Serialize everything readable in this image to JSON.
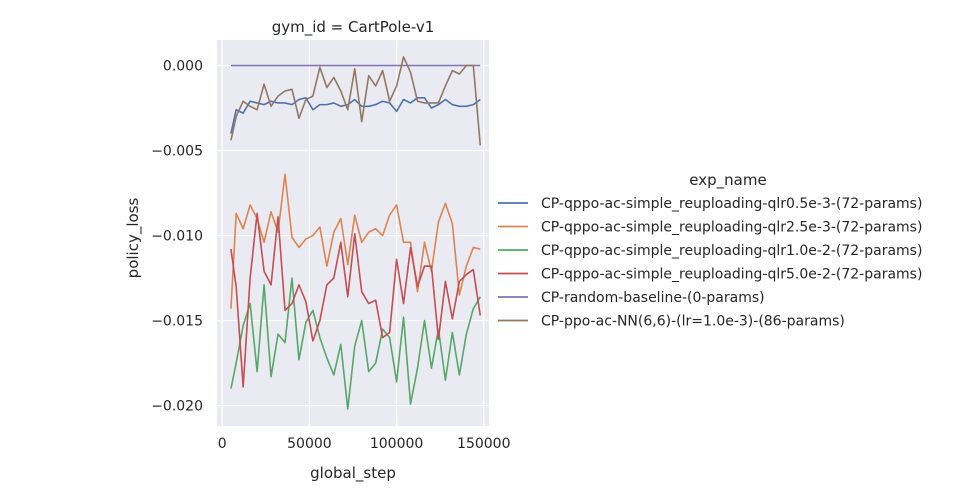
{
  "chart_data": {
    "type": "line",
    "title": "gym_id = CartPole-v1",
    "xlabel": "global_step",
    "ylabel": "policy_loss",
    "xlim": [
      -3000,
      153000
    ],
    "ylim": [
      -0.0212,
      0.0015
    ],
    "xticks": [
      0,
      50000,
      100000,
      150000
    ],
    "xtick_labels": [
      "0",
      "50000",
      "100000",
      "150000"
    ],
    "yticks": [
      0.0,
      -0.005,
      -0.01,
      -0.015,
      -0.02
    ],
    "ytick_labels": [
      "0.000",
      "−0.005",
      "−0.010",
      "−0.015",
      "−0.020"
    ],
    "grid": true,
    "legend_title": "exp_name",
    "legend_position": "right",
    "series": [
      {
        "name": "CP-qppo-ac-simple_reuploading-qlr0.5e-3-(72-params)",
        "color": "#4c72b0",
        "x": [
          5000,
          8000,
          12000,
          16000,
          20000,
          24000,
          28000,
          32000,
          36000,
          40000,
          44000,
          48000,
          52000,
          56000,
          60000,
          64000,
          68000,
          72000,
          76000,
          80000,
          84000,
          88000,
          92000,
          96000,
          100000,
          104000,
          108000,
          112000,
          116000,
          120000,
          124000,
          128000,
          132000,
          136000,
          140000,
          144000,
          148000
        ],
        "y": [
          -0.004,
          -0.0026,
          -0.0028,
          -0.0021,
          -0.0022,
          -0.0023,
          -0.0021,
          -0.0022,
          -0.0022,
          -0.0023,
          -0.002,
          -0.0019,
          -0.0026,
          -0.0023,
          -0.0023,
          -0.0022,
          -0.0024,
          -0.0023,
          -0.002,
          -0.0024,
          -0.0024,
          -0.0023,
          -0.0021,
          -0.0022,
          -0.0027,
          -0.002,
          -0.0022,
          -0.0019,
          -0.0019,
          -0.0025,
          -0.0023,
          -0.002,
          -0.0023,
          -0.0024,
          -0.0024,
          -0.0023,
          -0.002
        ]
      },
      {
        "name": "CP-qppo-ac-simple_reuploading-qlr2.5e-3-(72-params)",
        "color": "#dd8452",
        "x": [
          5000,
          8000,
          12000,
          16000,
          20000,
          24000,
          28000,
          32000,
          36000,
          40000,
          44000,
          48000,
          52000,
          56000,
          60000,
          64000,
          68000,
          72000,
          76000,
          80000,
          84000,
          88000,
          92000,
          96000,
          100000,
          104000,
          108000,
          112000,
          116000,
          120000,
          124000,
          128000,
          132000,
          136000,
          140000,
          144000,
          148000
        ],
        "y": [
          -0.0143,
          -0.0087,
          -0.0096,
          -0.0082,
          -0.009,
          -0.0104,
          -0.0086,
          -0.0098,
          -0.0064,
          -0.0101,
          -0.0107,
          -0.0102,
          -0.01,
          -0.0095,
          -0.0118,
          -0.0098,
          -0.009,
          -0.0117,
          -0.0088,
          -0.0104,
          -0.0098,
          -0.0096,
          -0.01,
          -0.0088,
          -0.0082,
          -0.0104,
          -0.0104,
          -0.0133,
          -0.0104,
          -0.0121,
          -0.0092,
          -0.0081,
          -0.0093,
          -0.0135,
          -0.0118,
          -0.0107,
          -0.0108
        ]
      },
      {
        "name": "CP-qppo-ac-simple_reuploading-qlr1.0e-2-(72-params)",
        "color": "#55a868",
        "x": [
          5000,
          8000,
          12000,
          16000,
          20000,
          24000,
          28000,
          32000,
          36000,
          40000,
          44000,
          48000,
          52000,
          56000,
          60000,
          64000,
          68000,
          72000,
          76000,
          80000,
          84000,
          88000,
          92000,
          96000,
          100000,
          104000,
          108000,
          112000,
          116000,
          120000,
          124000,
          128000,
          132000,
          136000,
          140000,
          144000,
          148000
        ],
        "y": [
          -0.019,
          -0.0175,
          -0.0153,
          -0.014,
          -0.018,
          -0.0129,
          -0.0183,
          -0.0158,
          -0.0163,
          -0.0125,
          -0.0173,
          -0.0151,
          -0.0144,
          -0.016,
          -0.0172,
          -0.0182,
          -0.0164,
          -0.0202,
          -0.0165,
          -0.015,
          -0.018,
          -0.0175,
          -0.0155,
          -0.016,
          -0.0186,
          -0.0148,
          -0.0199,
          -0.0178,
          -0.015,
          -0.0178,
          -0.0155,
          -0.0185,
          -0.0157,
          -0.0182,
          -0.0158,
          -0.0143,
          -0.0136
        ]
      },
      {
        "name": "CP-qppo-ac-simple_reuploading-qlr5.0e-2-(72-params)",
        "color": "#c44e52",
        "x": [
          5000,
          8000,
          12000,
          16000,
          20000,
          24000,
          28000,
          32000,
          36000,
          40000,
          44000,
          48000,
          52000,
          56000,
          60000,
          64000,
          68000,
          72000,
          76000,
          80000,
          84000,
          88000,
          92000,
          96000,
          100000,
          104000,
          108000,
          112000,
          116000,
          120000,
          124000,
          128000,
          132000,
          136000,
          140000,
          144000,
          148000
        ],
        "y": [
          -0.0108,
          -0.013,
          -0.0189,
          -0.0125,
          -0.0087,
          -0.0121,
          -0.0129,
          -0.0089,
          -0.0144,
          -0.014,
          -0.0129,
          -0.0139,
          -0.0162,
          -0.015,
          -0.0129,
          -0.0125,
          -0.0104,
          -0.0136,
          -0.0099,
          -0.0133,
          -0.014,
          -0.0138,
          -0.016,
          -0.0157,
          -0.0114,
          -0.014,
          -0.0107,
          -0.013,
          -0.0118,
          -0.0118,
          -0.0161,
          -0.0127,
          -0.0149,
          -0.0127,
          -0.0123,
          -0.012,
          -0.0147
        ]
      },
      {
        "name": "CP-random-baseline-(0-params)",
        "color": "#8172b3",
        "x": [
          5000,
          148000
        ],
        "y": [
          0.0,
          0.0
        ]
      },
      {
        "name": "CP-ppo-ac-NN(6,6)-(lr=1.0e-3)-(86-params)",
        "color": "#937860",
        "x": [
          5000,
          8000,
          12000,
          16000,
          20000,
          24000,
          28000,
          32000,
          36000,
          40000,
          44000,
          48000,
          52000,
          56000,
          60000,
          64000,
          68000,
          72000,
          76000,
          80000,
          84000,
          88000,
          92000,
          96000,
          100000,
          104000,
          108000,
          112000,
          116000,
          120000,
          124000,
          128000,
          132000,
          136000,
          140000,
          144000,
          148000
        ],
        "y": [
          -0.0044,
          -0.003,
          -0.0021,
          -0.0024,
          -0.0026,
          -0.0011,
          -0.0024,
          -0.0018,
          -0.0015,
          -0.0014,
          -0.0031,
          -0.002,
          -0.0018,
          -0.0001,
          -0.0013,
          -0.0007,
          -0.0015,
          -0.0026,
          -0.0002,
          -0.0033,
          -0.0006,
          -0.0012,
          -0.0003,
          -0.0021,
          -0.0012,
          0.0005,
          -0.0004,
          -0.0021,
          -0.0022,
          -0.0022,
          -0.0022,
          -0.0012,
          -0.0003,
          -0.0005,
          0.0,
          0.0,
          -0.0047
        ]
      }
    ]
  }
}
